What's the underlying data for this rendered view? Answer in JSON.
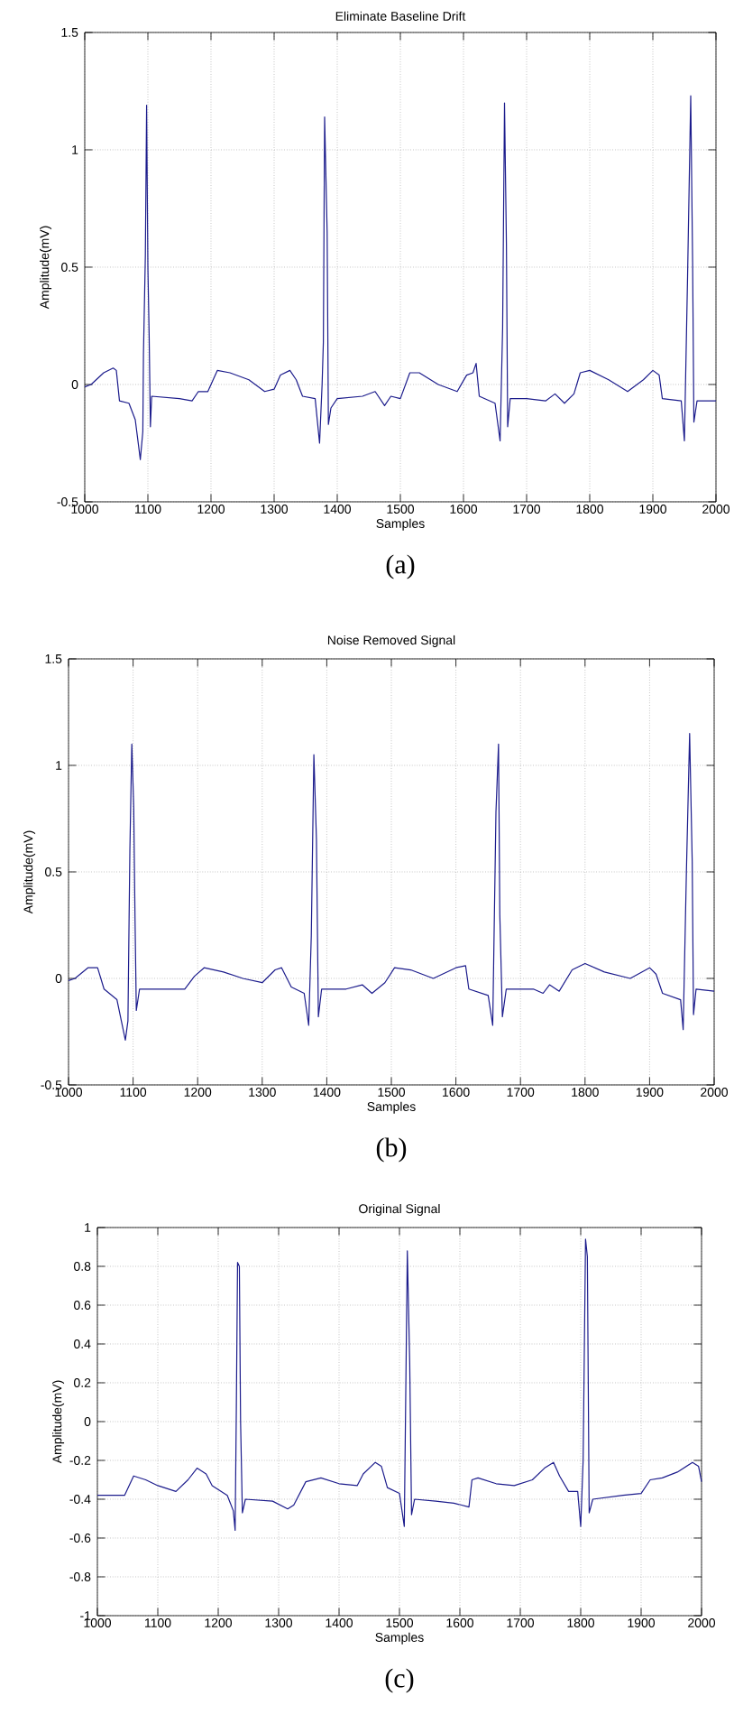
{
  "chart_data": [
    {
      "type": "line",
      "title": "Eliminate Baseline Drift",
      "xlabel": "Samples",
      "ylabel": "Amplitude(mV)",
      "xlim": [
        1000,
        2000
      ],
      "ylim": [
        -0.5,
        1.5
      ],
      "xticks": [
        1000,
        1100,
        1200,
        1300,
        1400,
        1500,
        1600,
        1700,
        1800,
        1900,
        2000
      ],
      "yticks": [
        -0.5,
        0,
        0.5,
        1,
        1.5
      ],
      "grid": true,
      "line_style": "solid",
      "marker": "none",
      "annotations": [
        "(a)"
      ],
      "series": [
        {
          "color": "#1c1c8c",
          "x": [
            1000,
            1010,
            1030,
            1045,
            1050,
            1055,
            1070,
            1080,
            1088,
            1092,
            1093,
            1096,
            1098,
            1100,
            1102,
            1104,
            1106,
            1150,
            1170,
            1180,
            1195,
            1210,
            1230,
            1260,
            1285,
            1300,
            1310,
            1325,
            1335,
            1345,
            1365,
            1372,
            1376,
            1378,
            1380,
            1384,
            1386,
            1390,
            1400,
            1440,
            1460,
            1475,
            1485,
            1500,
            1515,
            1530,
            1560,
            1590,
            1605,
            1615,
            1620,
            1625,
            1650,
            1658,
            1662,
            1665,
            1668,
            1670,
            1674,
            1700,
            1730,
            1745,
            1760,
            1775,
            1785,
            1800,
            1830,
            1860,
            1885,
            1900,
            1910,
            1915,
            1945,
            1950,
            1955,
            1960,
            1963,
            1965,
            1970,
            2000
          ],
          "values": [
            -0.01,
            0.0,
            0.05,
            0.07,
            0.06,
            -0.07,
            -0.08,
            -0.15,
            -0.32,
            -0.2,
            0.13,
            0.55,
            1.19,
            0.5,
            0.21,
            -0.18,
            -0.05,
            -0.06,
            -0.07,
            -0.03,
            -0.03,
            0.06,
            0.05,
            0.02,
            -0.03,
            -0.02,
            0.04,
            0.06,
            0.02,
            -0.05,
            -0.06,
            -0.25,
            0.0,
            0.18,
            1.14,
            0.65,
            -0.17,
            -0.1,
            -0.06,
            -0.05,
            -0.03,
            -0.09,
            -0.05,
            -0.06,
            0.05,
            0.05,
            0.0,
            -0.03,
            0.04,
            0.05,
            0.09,
            -0.05,
            -0.08,
            -0.24,
            0.24,
            1.2,
            0.6,
            -0.18,
            -0.06,
            -0.06,
            -0.07,
            -0.04,
            -0.08,
            -0.04,
            0.05,
            0.06,
            0.02,
            -0.03,
            0.02,
            0.06,
            0.04,
            -0.06,
            -0.07,
            -0.24,
            0.46,
            1.23,
            0.52,
            -0.16,
            -0.07,
            -0.07
          ]
        }
      ]
    },
    {
      "type": "line",
      "title": "Noise Removed Signal",
      "xlabel": "Samples",
      "ylabel": "Amplitude(mV)",
      "xlim": [
        1000,
        2000
      ],
      "ylim": [
        -0.5,
        1.5
      ],
      "xticks": [
        1000,
        1100,
        1200,
        1300,
        1400,
        1500,
        1600,
        1700,
        1800,
        1900,
        2000
      ],
      "yticks": [
        -0.5,
        0,
        0.5,
        1,
        1.5
      ],
      "grid": true,
      "line_style": "solid",
      "marker": "none",
      "annotations": [
        "(b)"
      ],
      "series": [
        {
          "color": "#1c1c8c",
          "x": [
            1000,
            1010,
            1030,
            1045,
            1055,
            1075,
            1088,
            1092,
            1095,
            1098,
            1101,
            1103,
            1105,
            1110,
            1150,
            1180,
            1195,
            1210,
            1240,
            1270,
            1300,
            1320,
            1330,
            1345,
            1365,
            1372,
            1376,
            1380,
            1384,
            1387,
            1392,
            1430,
            1455,
            1470,
            1490,
            1505,
            1530,
            1565,
            1600,
            1615,
            1620,
            1650,
            1657,
            1662,
            1666,
            1668,
            1672,
            1678,
            1720,
            1735,
            1745,
            1760,
            1780,
            1800,
            1830,
            1870,
            1900,
            1910,
            1920,
            1948,
            1952,
            1957,
            1962,
            1966,
            1968,
            1972,
            2000
          ],
          "values": [
            -0.01,
            0.0,
            0.05,
            0.05,
            -0.05,
            -0.1,
            -0.29,
            -0.2,
            0.6,
            1.1,
            0.8,
            0.28,
            -0.15,
            -0.05,
            -0.05,
            -0.05,
            0.01,
            0.05,
            0.03,
            0.0,
            -0.02,
            0.04,
            0.05,
            -0.04,
            -0.07,
            -0.22,
            0.2,
            1.05,
            0.65,
            -0.18,
            -0.05,
            -0.05,
            -0.03,
            -0.07,
            -0.02,
            0.05,
            0.04,
            0.0,
            0.05,
            0.06,
            -0.05,
            -0.08,
            -0.22,
            0.78,
            1.1,
            0.3,
            -0.18,
            -0.05,
            -0.05,
            -0.07,
            -0.03,
            -0.06,
            0.04,
            0.07,
            0.03,
            0.0,
            0.05,
            0.02,
            -0.07,
            -0.1,
            -0.24,
            0.5,
            1.15,
            0.55,
            -0.17,
            -0.05,
            -0.06
          ]
        }
      ]
    },
    {
      "type": "line",
      "title": "Original Signal",
      "xlabel": "Samples",
      "ylabel": "Amplitude(mV)",
      "xlim": [
        1000,
        2000
      ],
      "ylim": [
        -1,
        1
      ],
      "xticks": [
        1000,
        1100,
        1200,
        1300,
        1400,
        1500,
        1600,
        1700,
        1800,
        1900,
        2000
      ],
      "yticks": [
        -1,
        -0.8,
        -0.6,
        -0.4,
        -0.2,
        0,
        0.2,
        0.4,
        0.6,
        0.8,
        1
      ],
      "grid": true,
      "line_style": "solid",
      "marker": "none",
      "annotations": [
        "(c)"
      ],
      "series": [
        {
          "color": "#1c1c8c",
          "x": [
            1000,
            1045,
            1060,
            1080,
            1100,
            1130,
            1150,
            1165,
            1180,
            1190,
            1215,
            1225,
            1228,
            1230,
            1232,
            1235,
            1237,
            1240,
            1245,
            1290,
            1315,
            1325,
            1345,
            1370,
            1400,
            1430,
            1440,
            1460,
            1470,
            1480,
            1500,
            1508,
            1513,
            1517,
            1520,
            1525,
            1560,
            1590,
            1615,
            1620,
            1630,
            1660,
            1690,
            1720,
            1740,
            1755,
            1765,
            1780,
            1795,
            1800,
            1804,
            1808,
            1811,
            1814,
            1820,
            1870,
            1900,
            1915,
            1935,
            1960,
            1985,
            1995,
            2000
          ],
          "values": [
            -0.38,
            -0.38,
            -0.28,
            -0.3,
            -0.33,
            -0.36,
            -0.3,
            -0.24,
            -0.27,
            -0.33,
            -0.38,
            -0.46,
            -0.56,
            0.07,
            0.82,
            0.8,
            0.0,
            -0.47,
            -0.4,
            -0.41,
            -0.45,
            -0.43,
            -0.31,
            -0.29,
            -0.32,
            -0.33,
            -0.27,
            -0.21,
            -0.23,
            -0.34,
            -0.37,
            -0.54,
            0.88,
            0.3,
            -0.48,
            -0.4,
            -0.41,
            -0.42,
            -0.44,
            -0.3,
            -0.29,
            -0.32,
            -0.33,
            -0.3,
            -0.24,
            -0.21,
            -0.28,
            -0.36,
            -0.36,
            -0.54,
            -0.2,
            0.94,
            0.85,
            -0.47,
            -0.4,
            -0.38,
            -0.37,
            -0.3,
            -0.29,
            -0.26,
            -0.21,
            -0.23,
            -0.31
          ]
        }
      ]
    }
  ]
}
